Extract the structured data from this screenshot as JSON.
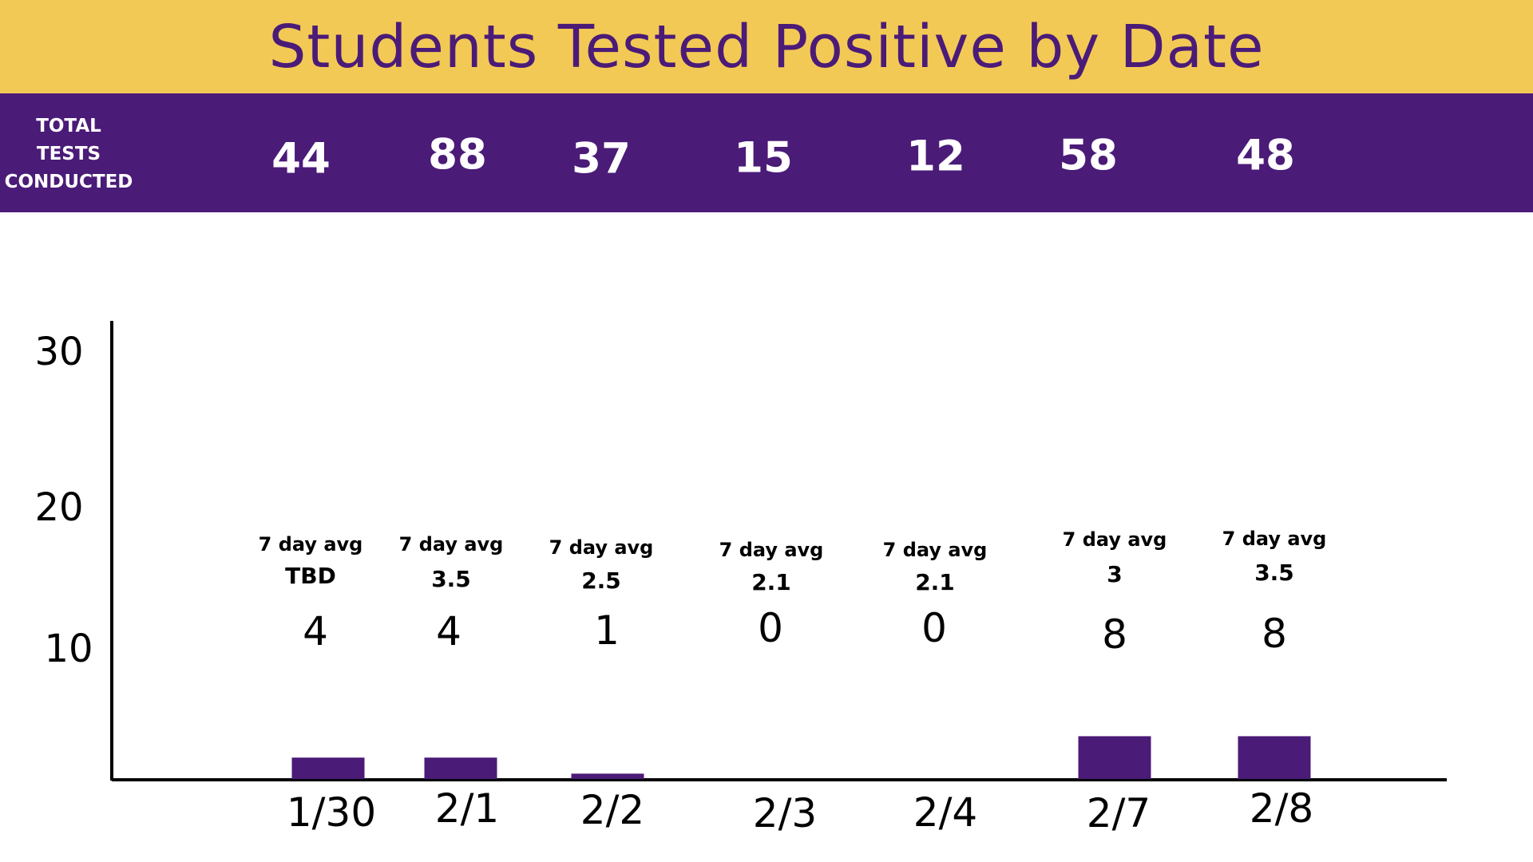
{
  "header": {
    "title": "Students Tested Positive by Date",
    "tests_label_lines": [
      "TOTAL",
      "TESTS",
      "CONDUCTED"
    ]
  },
  "tests_conducted": [
    "44",
    "88",
    "37",
    "15",
    "12",
    "58",
    "48"
  ],
  "avg_label": "7 day avg",
  "seven_day_avg": [
    "TBD",
    "3.5",
    "2.5",
    "2.1",
    "2.1",
    "3",
    "3.5"
  ],
  "colors": {
    "title_bg": "#F3C955",
    "title_text": "#4B1B78",
    "tests_bar_bg": "#4B1B78",
    "bar": "#4B1B78",
    "axis": "#000000"
  },
  "chart_data": {
    "type": "bar",
    "title": "Students Tested Positive by Date",
    "categories": [
      "1/30",
      "2/1",
      "2/2",
      "2/3",
      "2/4",
      "2/7",
      "2/8"
    ],
    "values": [
      4,
      4,
      1,
      0,
      0,
      8,
      8
    ],
    "y_tick_labels": [
      "30",
      "20",
      "10"
    ],
    "grid": false,
    "legend": "none"
  }
}
